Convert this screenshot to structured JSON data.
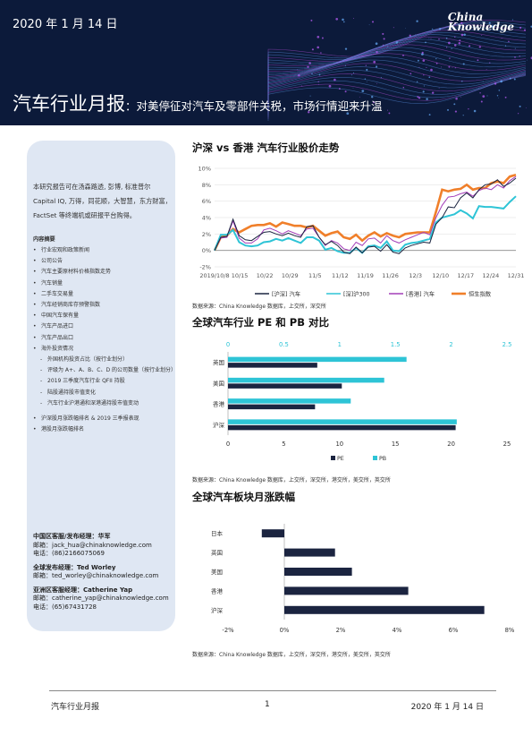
{
  "header": {
    "date": "2020 年 1 月 14 日",
    "brand_line1": "China",
    "brand_line2": "Knowledge",
    "title_main": "汽车行业月报",
    "title_sub": "：对美停征对汽车及零部件关税，市场行情迎来升温"
  },
  "sidebar": {
    "intro": "本研究报告可在汤森路透, 彭博, 标准普尔 Capital IQ, 万得，同花顺，大智慧，东方财富，FactSet 等终端机或研报平台购得。",
    "toc_heading": "内容摘要",
    "toc": [
      {
        "text": "行业宏观和政策新闻",
        "level": 1
      },
      {
        "text": "公司公告",
        "level": 1
      },
      {
        "text": "汽车主要原材料价格指数走势",
        "level": 1
      },
      {
        "text": "汽车销量",
        "level": 1
      },
      {
        "text": "二手车交易量",
        "level": 1
      },
      {
        "text": "汽车经销商库存预警指数",
        "level": 1
      },
      {
        "text": "中国汽车保有量",
        "level": 1
      },
      {
        "text": "汽车产品进口",
        "level": 1
      },
      {
        "text": "汽车产品出口",
        "level": 1
      },
      {
        "text": "海外投资情况",
        "level": 1
      },
      {
        "text": "外国机构投资占比（按行业划分）",
        "level": 2
      },
      {
        "text": "评级为 A+、A、B、C、D 的公司数量（按行业划分）",
        "level": 2
      },
      {
        "text": "2019 三季度汽车行业 QFII 持股",
        "level": 2
      },
      {
        "text": "陆股通持股市值变化",
        "level": 2
      },
      {
        "text": "汽车行业沪港通和深港通持股市值变动",
        "level": 2
      },
      {
        "text": "沪深股月涨跌幅排名 & 2019 三季报表现",
        "level": 1,
        "gap": true
      },
      {
        "text": "港股月涨跌幅排名",
        "level": 1
      }
    ],
    "contacts": [
      {
        "title": "中国区客服/发布经理：华军",
        "email": "邮箱：jack_hua@chinaknowledge.com",
        "phone": "电话：(86)2166075069"
      },
      {
        "title": "全球发布经理：Ted Worley",
        "email": "邮箱：ted_worley@chinaknowledge.com",
        "phone": ""
      },
      {
        "title": "亚洲区客服经理：Catherine Yap",
        "email": "邮箱：catherine_yap@chinaknowledge.com",
        "phone": "电话：(65)67431728"
      }
    ]
  },
  "sections": {
    "line_title": "沪深 vs 香港  汽车行业股价走势",
    "line_source": "数据来源：China Knowledge 数据库，上交所，深交所",
    "pepb_title": "全球汽车行业 PE 和 PB 对比",
    "pepb_source": "数据来源：China Knowledge 数据库，上交所，深交所，港交所，美交所，英交所",
    "block_title": "全球汽车板块月涨跌幅",
    "block_source": "数据来源：China Knowledge 数据库，上交所，深交所，港交所，美交所，英交所"
  },
  "footer": {
    "left": "汽车行业月报",
    "page": "1",
    "right": "2020 年 1 月 14 日"
  },
  "colors": {
    "navy": "#0c1a3a",
    "dark_bar": "#1b2440",
    "teal": "#2ec4d6",
    "orange": "#f07f2a",
    "purple": "#a33db8",
    "sidebar_bg": "#dfe7f3"
  },
  "chart_data": [
    {
      "type": "line",
      "x_ticks": [
        "2019/10/8",
        "10/15",
        "10/22",
        "10/29",
        "11/5",
        "11/12",
        "11/19",
        "11/26",
        "12/3",
        "12/10",
        "12/17",
        "12/24",
        "12/31"
      ],
      "y_ticks": [
        "10%",
        "8%",
        "6%",
        "4%",
        "2%",
        "0%",
        "-2%"
      ],
      "ylim": [
        -2,
        10
      ],
      "series": [
        {
          "name": "[沪深] 汽车",
          "color": "#1b2440",
          "values": [
            0,
            1.6,
            1.7,
            3.8,
            1.8,
            1.3,
            1.2,
            1.7,
            2.2,
            2.3,
            2.0,
            1.8,
            2.1,
            1.8,
            1.6,
            2.9,
            3.0,
            1.6,
            0.7,
            1.1,
            0.6,
            -0.2,
            -0.4,
            0.4,
            -0.3,
            0.4,
            0.5,
            -0.1,
            0.7,
            -0.2,
            -0.4,
            0.3,
            0.6,
            0.8,
            1.0,
            0.9,
            3.2,
            4.0,
            5.3,
            5.2,
            6.4,
            7.0,
            6.4,
            7.4,
            8.0,
            8.1,
            8.6,
            7.8,
            8.2,
            8.8
          ]
        },
        {
          "name": "[深]沪300",
          "color": "#2ec4d6",
          "values": [
            0,
            1.9,
            1.9,
            2.5,
            1.0,
            0.6,
            0.5,
            0.6,
            1.0,
            1.1,
            1.4,
            1.2,
            1.5,
            1.2,
            0.9,
            1.6,
            1.6,
            1.2,
            0.1,
            0.3,
            -0.1,
            -0.3,
            -0.3,
            0.3,
            -0.3,
            0.5,
            0.6,
            0.3,
            1.1,
            0.0,
            -0.1,
            0.7,
            0.9,
            1.0,
            1.2,
            1.4,
            3.4,
            4.0,
            4.2,
            4.4,
            4.9,
            4.5,
            3.9,
            5.4,
            5.3,
            5.3,
            5.2,
            5.1,
            5.9,
            6.6
          ]
        },
        {
          "name": "[香港] 汽车",
          "color": "#a33db8",
          "values": [
            0,
            1.5,
            1.6,
            3.6,
            1.5,
            0.9,
            0.9,
            1.4,
            2.5,
            2.7,
            2.4,
            2.0,
            2.4,
            2.1,
            1.8,
            2.6,
            2.7,
            1.6,
            0.6,
            1.2,
            0.9,
            0.2,
            0.0,
            1.0,
            0.6,
            1.4,
            1.5,
            0.9,
            1.8,
            1.2,
            0.9,
            1.3,
            1.6,
            1.9,
            2.2,
            1.9,
            4.0,
            5.5,
            6.5,
            6.6,
            6.9,
            7.1,
            6.6,
            7.3,
            7.6,
            7.4,
            8.0,
            7.6,
            8.5,
            9.0
          ]
        },
        {
          "name": "恒生指数",
          "color": "#f07f2a",
          "values": [
            0,
            1.6,
            1.8,
            2.6,
            2.2,
            2.6,
            3.0,
            3.1,
            3.1,
            3.3,
            2.9,
            3.4,
            3.2,
            3.0,
            3.0,
            2.8,
            3.0,
            2.4,
            1.8,
            2.1,
            2.3,
            1.6,
            1.4,
            1.9,
            1.2,
            1.8,
            2.2,
            1.7,
            2.1,
            1.8,
            1.6,
            2.0,
            2.1,
            2.2,
            2.2,
            2.2,
            4.7,
            7.4,
            7.2,
            7.4,
            7.5,
            8.0,
            7.4,
            7.6,
            7.6,
            8.2,
            8.4,
            8.2,
            9.0,
            9.2
          ]
        }
      ]
    },
    {
      "type": "bar",
      "orientation": "horizontal",
      "categories": [
        "英国",
        "美国",
        "香港",
        "沪深"
      ],
      "series": [
        {
          "name": "PE",
          "color": "#1b2440",
          "values": [
            8.0,
            10.2,
            7.8,
            20.4
          ],
          "axis": "bottom"
        },
        {
          "name": "PB",
          "color": "#2ec4d6",
          "values": [
            1.6,
            1.4,
            1.1,
            2.05
          ],
          "axis": "top"
        }
      ],
      "pe_ticks": [
        "0",
        "5",
        "10",
        "15",
        "20",
        "25"
      ],
      "pe_lim": [
        0,
        25
      ],
      "pb_ticks": [
        "0",
        "0.5",
        "1",
        "1.5",
        "2",
        "2.5"
      ],
      "pb_lim": [
        0,
        2.5
      ]
    },
    {
      "type": "bar",
      "orientation": "horizontal",
      "categories": [
        "日本",
        "英国",
        "美国",
        "香港",
        "沪深"
      ],
      "values": [
        -0.8,
        1.8,
        2.4,
        4.4,
        7.1
      ],
      "color": "#1b2440",
      "x_ticks": [
        "-2%",
        "0%",
        "2%",
        "4%",
        "6%",
        "8%"
      ],
      "xlim": [
        -2,
        8
      ]
    }
  ]
}
